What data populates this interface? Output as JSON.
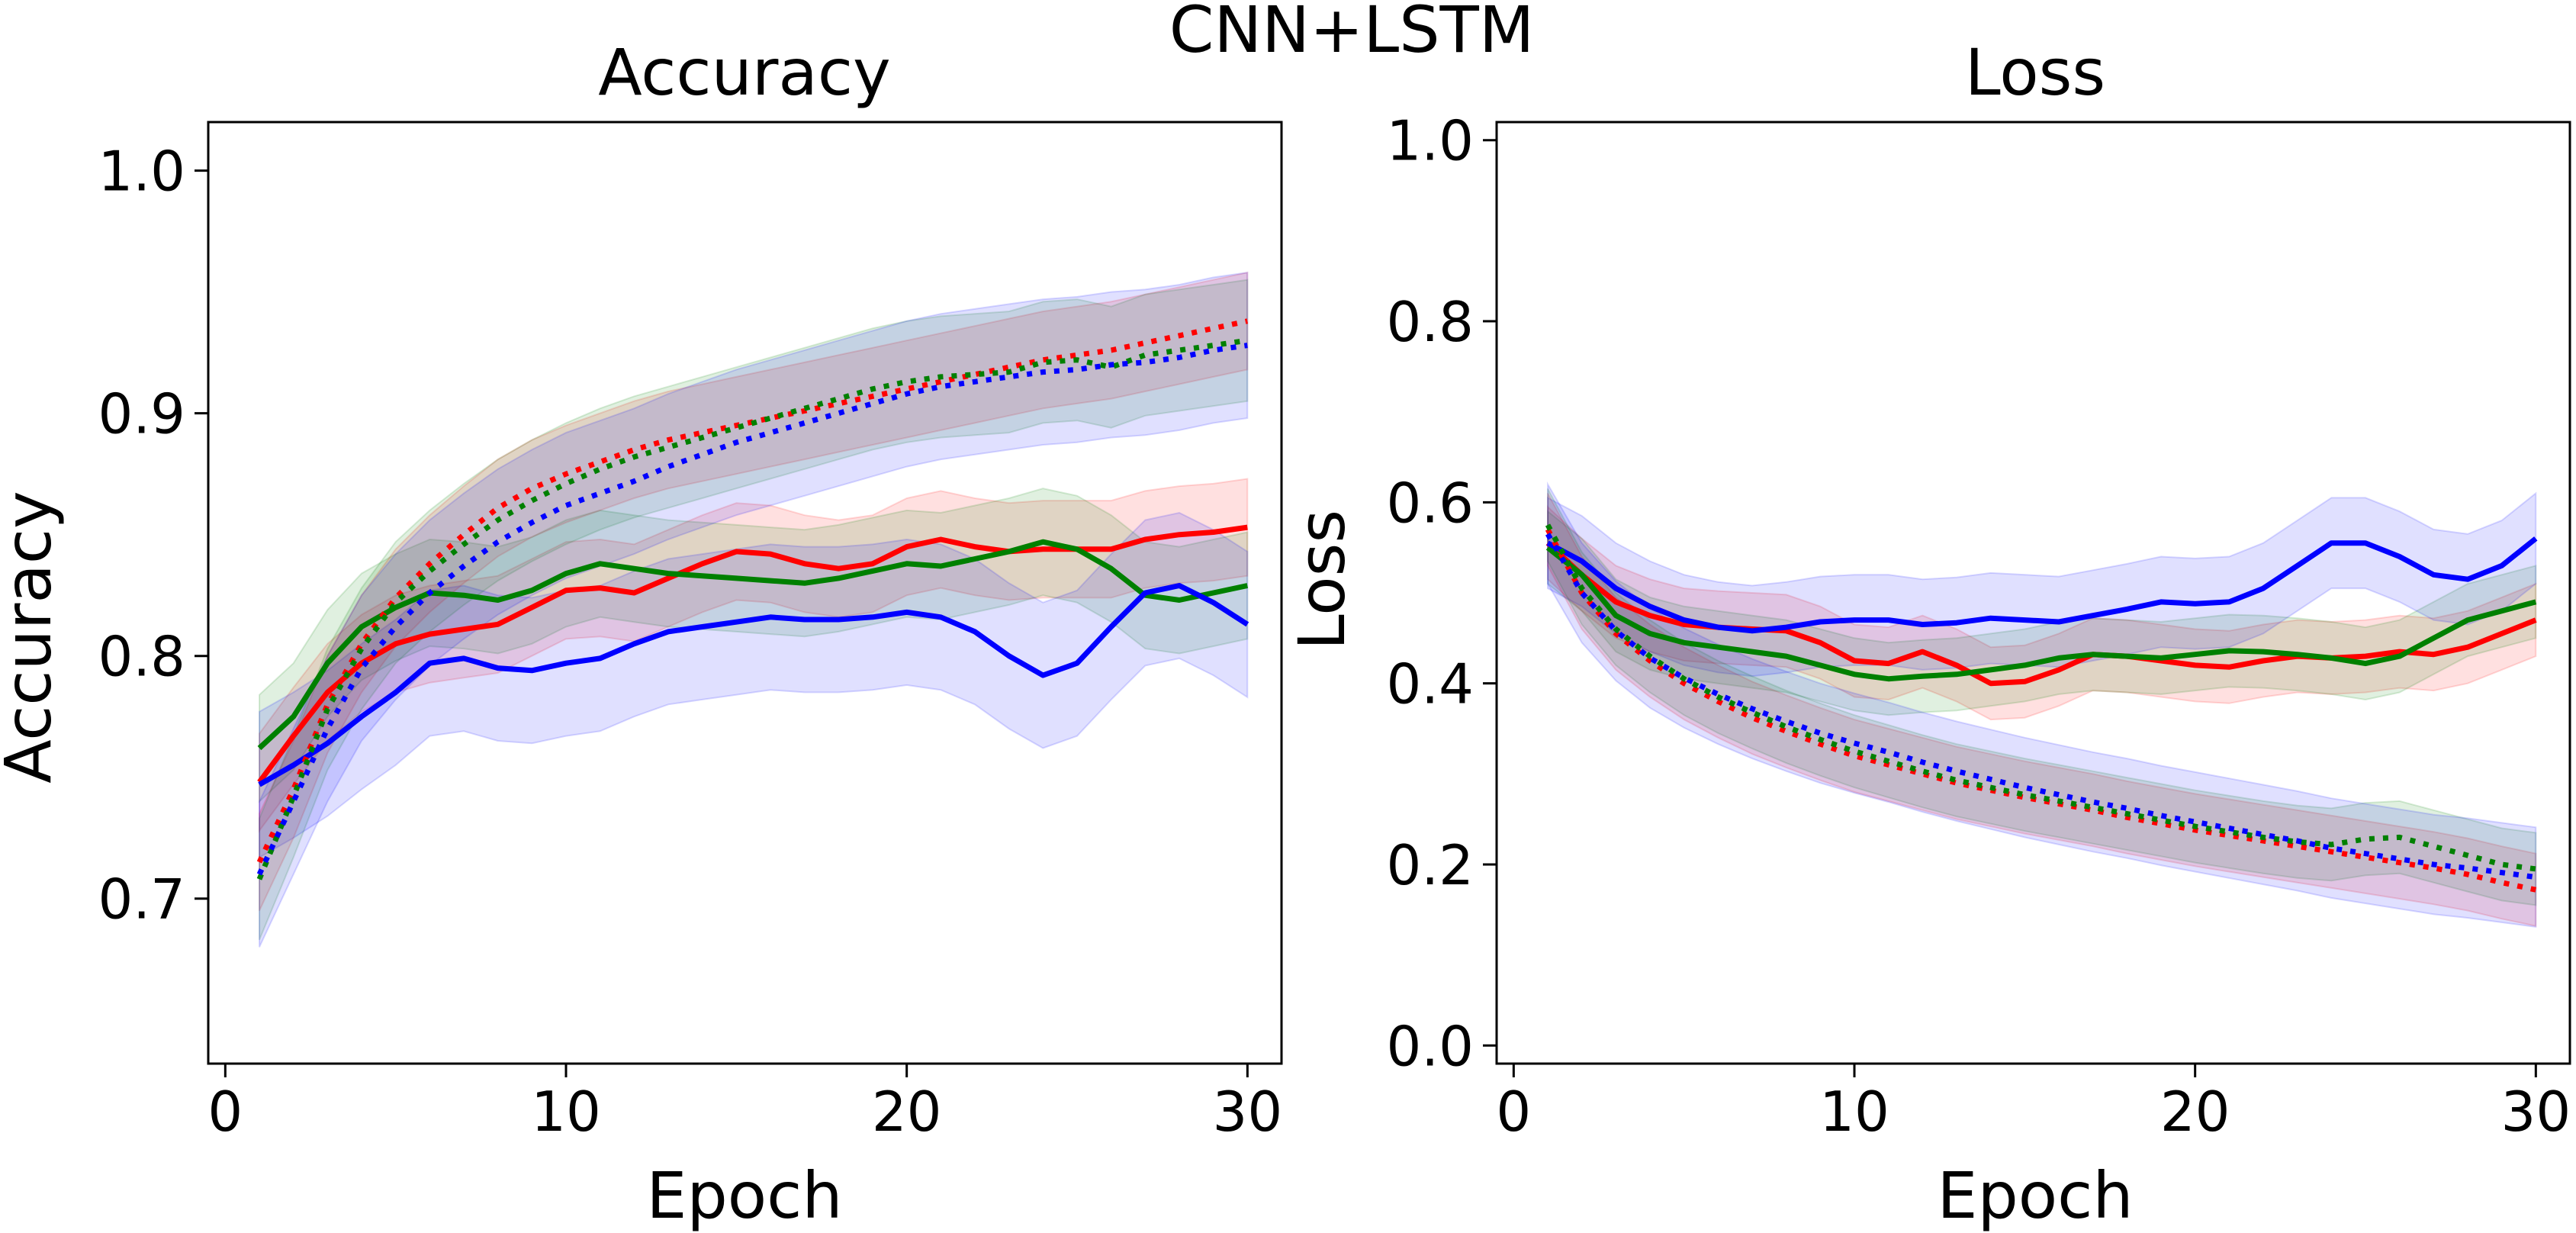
{
  "suptitle": "CNN+LSTM",
  "colors": {
    "red": "#ff0000",
    "green": "#008000",
    "blue": "#0000ff"
  },
  "chart_data": [
    {
      "type": "line",
      "title": "Accuracy",
      "xlabel": "Epoch",
      "ylabel": "Accuracy",
      "xlim": [
        -0.5,
        31
      ],
      "ylim": [
        0.632,
        1.02
      ],
      "xticks": [
        "0",
        "10",
        "20",
        "30"
      ],
      "xtick_values": [
        0,
        10,
        20,
        30
      ],
      "yticks": [
        "0.7",
        "0.8",
        "0.9",
        "1.0"
      ],
      "ytick_values": [
        0.7,
        0.8,
        0.9,
        1.0
      ],
      "grid": false,
      "x": [
        1,
        2,
        3,
        4,
        5,
        6,
        7,
        8,
        9,
        10,
        11,
        12,
        13,
        14,
        15,
        16,
        17,
        18,
        19,
        20,
        21,
        22,
        23,
        24,
        25,
        26,
        27,
        28,
        29,
        30
      ],
      "series": [
        {
          "color": "red",
          "style": "solid",
          "values": [
            0.748,
            0.767,
            0.785,
            0.797,
            0.805,
            0.809,
            0.811,
            0.813,
            0.82,
            0.827,
            0.828,
            0.826,
            0.832,
            0.838,
            0.843,
            0.842,
            0.838,
            0.836,
            0.838,
            0.845,
            0.848,
            0.845,
            0.843,
            0.844,
            0.844,
            0.844,
            0.848,
            0.85,
            0.851,
            0.853
          ],
          "band": 0.02
        },
        {
          "color": "green",
          "style": "solid",
          "values": [
            0.762,
            0.775,
            0.797,
            0.812,
            0.82,
            0.826,
            0.825,
            0.823,
            0.827,
            0.834,
            0.838,
            0.836,
            0.834,
            0.833,
            0.832,
            0.831,
            0.83,
            0.832,
            0.835,
            0.838,
            0.837,
            0.84,
            0.843,
            0.847,
            0.844,
            0.836,
            0.825,
            0.823,
            0.826,
            0.829
          ],
          "band": 0.022
        },
        {
          "color": "blue",
          "style": "solid",
          "values": [
            0.747,
            0.755,
            0.764,
            0.775,
            0.785,
            0.797,
            0.799,
            0.795,
            0.794,
            0.797,
            0.799,
            0.805,
            0.81,
            0.812,
            0.814,
            0.816,
            0.815,
            0.815,
            0.816,
            0.818,
            0.816,
            0.81,
            0.8,
            0.792,
            0.797,
            0.812,
            0.826,
            0.829,
            0.822,
            0.813
          ],
          "band": 0.03
        },
        {
          "color": "red",
          "style": "dotted",
          "values": [
            0.715,
            0.745,
            0.78,
            0.805,
            0.824,
            0.838,
            0.85,
            0.861,
            0.869,
            0.875,
            0.88,
            0.885,
            0.889,
            0.892,
            0.895,
            0.898,
            0.901,
            0.904,
            0.907,
            0.91,
            0.913,
            0.916,
            0.919,
            0.922,
            0.924,
            0.926,
            0.929,
            0.932,
            0.935,
            0.938
          ],
          "band": 0.02
        },
        {
          "color": "green",
          "style": "dotted",
          "values": [
            0.708,
            0.742,
            0.778,
            0.803,
            0.822,
            0.835,
            0.846,
            0.856,
            0.864,
            0.871,
            0.877,
            0.882,
            0.886,
            0.89,
            0.894,
            0.898,
            0.902,
            0.906,
            0.91,
            0.913,
            0.915,
            0.916,
            0.917,
            0.921,
            0.922,
            0.919,
            0.924,
            0.926,
            0.928,
            0.93
          ],
          "band": 0.025
        },
        {
          "color": "blue",
          "style": "dotted",
          "values": [
            0.71,
            0.74,
            0.77,
            0.795,
            0.812,
            0.826,
            0.837,
            0.847,
            0.855,
            0.862,
            0.867,
            0.872,
            0.878,
            0.883,
            0.888,
            0.892,
            0.896,
            0.9,
            0.904,
            0.908,
            0.911,
            0.913,
            0.915,
            0.917,
            0.918,
            0.92,
            0.921,
            0.923,
            0.926,
            0.928
          ],
          "band": 0.03
        }
      ]
    },
    {
      "type": "line",
      "title": "Loss",
      "xlabel": "Epoch",
      "ylabel": "Loss",
      "xlim": [
        -0.5,
        31
      ],
      "ylim": [
        -0.02,
        1.02
      ],
      "xticks": [
        "0",
        "10",
        "20",
        "30"
      ],
      "xtick_values": [
        0,
        10,
        20,
        30
      ],
      "yticks": [
        "0.0",
        "0.2",
        "0.4",
        "0.6",
        "0.8",
        "1.0"
      ],
      "ytick_values": [
        0.0,
        0.2,
        0.4,
        0.6,
        0.8,
        1.0
      ],
      "grid": false,
      "x": [
        1,
        2,
        3,
        4,
        5,
        6,
        7,
        8,
        9,
        10,
        11,
        12,
        13,
        14,
        15,
        16,
        17,
        18,
        19,
        20,
        21,
        22,
        23,
        24,
        25,
        26,
        27,
        28,
        29,
        30
      ],
      "series": [
        {
          "color": "red",
          "style": "solid",
          "values": [
            0.555,
            0.52,
            0.49,
            0.475,
            0.465,
            0.462,
            0.46,
            0.458,
            0.445,
            0.425,
            0.422,
            0.435,
            0.42,
            0.4,
            0.402,
            0.415,
            0.432,
            0.43,
            0.425,
            0.42,
            0.418,
            0.425,
            0.43,
            0.428,
            0.43,
            0.435,
            0.432,
            0.44,
            0.455,
            0.47
          ],
          "band": 0.04
        },
        {
          "color": "green",
          "style": "solid",
          "values": [
            0.55,
            0.52,
            0.475,
            0.455,
            0.445,
            0.44,
            0.435,
            0.43,
            0.42,
            0.41,
            0.405,
            0.408,
            0.41,
            0.415,
            0.42,
            0.428,
            0.432,
            0.43,
            0.428,
            0.432,
            0.436,
            0.435,
            0.432,
            0.428,
            0.422,
            0.43,
            0.45,
            0.47,
            0.48,
            0.49
          ],
          "band": 0.04
        },
        {
          "color": "blue",
          "style": "solid",
          "values": [
            0.555,
            0.535,
            0.505,
            0.485,
            0.47,
            0.462,
            0.458,
            0.462,
            0.468,
            0.47,
            0.47,
            0.465,
            0.467,
            0.472,
            0.47,
            0.468,
            0.475,
            0.482,
            0.49,
            0.488,
            0.49,
            0.505,
            0.53,
            0.555,
            0.555,
            0.54,
            0.52,
            0.515,
            0.53,
            0.56
          ],
          "band": 0.05
        },
        {
          "color": "red",
          "style": "dotted",
          "values": [
            0.57,
            0.5,
            0.455,
            0.425,
            0.4,
            0.38,
            0.362,
            0.347,
            0.333,
            0.32,
            0.31,
            0.3,
            0.29,
            0.282,
            0.274,
            0.267,
            0.26,
            0.252,
            0.245,
            0.238,
            0.232,
            0.226,
            0.22,
            0.214,
            0.208,
            0.202,
            0.196,
            0.189,
            0.18,
            0.172
          ],
          "band": 0.04
        },
        {
          "color": "green",
          "style": "dotted",
          "values": [
            0.575,
            0.505,
            0.46,
            0.43,
            0.405,
            0.385,
            0.368,
            0.352,
            0.338,
            0.325,
            0.314,
            0.303,
            0.293,
            0.285,
            0.277,
            0.27,
            0.263,
            0.256,
            0.249,
            0.242,
            0.236,
            0.23,
            0.225,
            0.222,
            0.228,
            0.23,
            0.22,
            0.21,
            0.2,
            0.195
          ],
          "band": 0.04
        },
        {
          "color": "blue",
          "style": "dotted",
          "values": [
            0.565,
            0.5,
            0.458,
            0.428,
            0.406,
            0.388,
            0.372,
            0.358,
            0.345,
            0.334,
            0.324,
            0.313,
            0.303,
            0.294,
            0.285,
            0.277,
            0.269,
            0.262,
            0.254,
            0.247,
            0.24,
            0.233,
            0.226,
            0.218,
            0.212,
            0.206,
            0.2,
            0.196,
            0.191,
            0.186
          ],
          "band": 0.055
        }
      ]
    }
  ]
}
